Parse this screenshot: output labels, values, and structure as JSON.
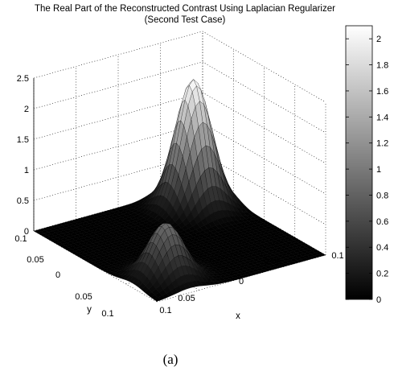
{
  "chart_data": {
    "type": "surface",
    "title": "The Real Part of the Reconstructed Contrast Using Laplacian Regularizer",
    "subtitle": "(Second Test Case)",
    "xlabel": "x",
    "ylabel": "y",
    "xlim": [
      -0.1,
      0.1
    ],
    "ylim": [
      -0.1,
      0.1
    ],
    "zlim": [
      0,
      2.5
    ],
    "x_tick_labels": [
      "0.1",
      "0.05",
      "0",
      "0.05",
      "0.1"
    ],
    "y_tick_labels": [
      "0.1",
      "0.05",
      "0",
      "0.05",
      "0.1"
    ],
    "z_ticks": [
      0,
      0.5,
      1,
      1.5,
      2,
      2.5
    ],
    "z_tick_labels": [
      "0",
      "0.5",
      "1",
      "1.5",
      "2",
      "2.5"
    ],
    "grid": true,
    "colormap": "gray",
    "colorbar": {
      "range": [
        0,
        2.1
      ],
      "ticks": [
        0,
        0.2,
        0.4,
        0.6,
        0.8,
        1,
        1.2,
        1.4,
        1.6,
        1.8,
        2
      ],
      "tick_labels": [
        "0",
        "0.2",
        "0.4",
        "0.6",
        "0.8",
        "1",
        "1.2",
        "1.4",
        "1.6",
        "1.8",
        "2"
      ]
    },
    "peaks": [
      {
        "x": -0.06,
        "y": -0.06,
        "height": 0.9
      },
      {
        "x": 0.06,
        "y": 0.06,
        "height": 2.1
      }
    ]
  },
  "caption": "(a)",
  "colors": {
    "background": "#ffffff",
    "axes": "#000000"
  }
}
